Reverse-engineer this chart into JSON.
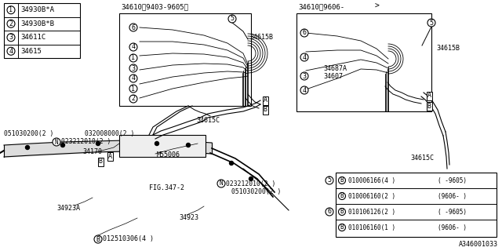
{
  "bg_color": "#ffffff",
  "legend_items": [
    {
      "num": "1",
      "text": "34930B*A"
    },
    {
      "num": "2",
      "text": "34930B*B"
    },
    {
      "num": "3",
      "text": "34611C"
    },
    {
      "num": "4",
      "text": "34615"
    }
  ],
  "parts_table_5": [
    {
      "part": "010006166(4 )",
      "date": "( -9605)"
    },
    {
      "part": "010006160(2 )",
      "date": "(9606- )"
    }
  ],
  "parts_table_6": [
    {
      "part": "010106126(2 )",
      "date": "( -9605)"
    },
    {
      "part": "010106160(1 )",
      "date": "(9606- )"
    }
  ],
  "diagram_label": "A346001033",
  "box1_label": "34610（9403-9605）",
  "box2_label": "34610（9606-",
  "box2_arrow": ">",
  "label_34615B_1": "34615B",
  "label_34615B_2": "34615B",
  "label_34615C_1": "34615C",
  "label_34615C_2": "34615C",
  "label_34687A": "34687A",
  "label_34607": "34607",
  "label_34170": "34170",
  "label_M55006": "M55006",
  "label_FIG": "FIG.347-2",
  "label_34923A": "34923A",
  "label_34923": "34923",
  "label_051030200_top": "051030200(2 )",
  "label_032008000": "032008000(2 )",
  "label_N1_text": "023212010(2 )",
  "label_051030200_bot": "051030200(2 )",
  "label_N2_text": "023212010(2 )",
  "label_B_bolt": "012510306(4 )"
}
